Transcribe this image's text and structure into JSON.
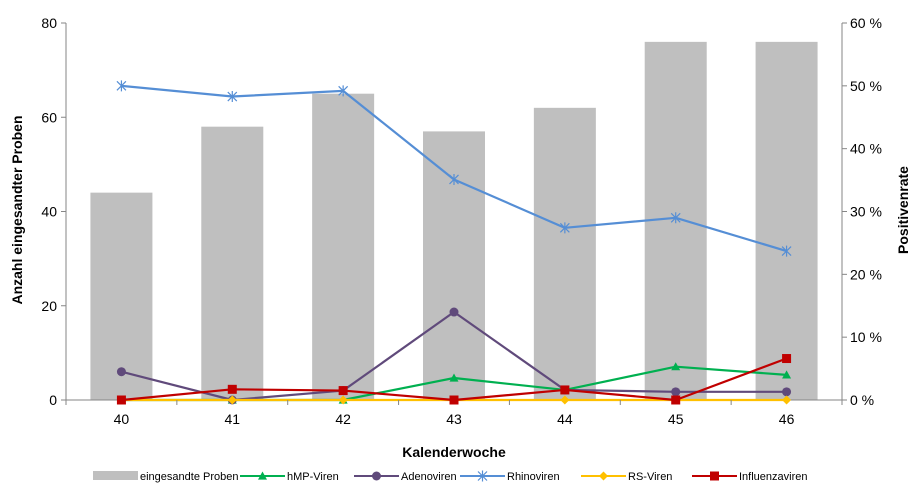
{
  "chart_data": {
    "type": "bar",
    "title": "",
    "xlabel": "Kalenderwoche",
    "ylabel": "Anzahl eingesandter Proben",
    "y2label": "Positivenrate",
    "ylim": [
      0,
      80
    ],
    "y2lim": [
      0,
      60
    ],
    "yticks": [
      "0",
      "20",
      "40",
      "60",
      "80"
    ],
    "y2ticks": [
      "0 %",
      "10 %",
      "20 %",
      "30 %",
      "40 %",
      "50 %",
      "60 %"
    ],
    "categories": [
      "40",
      "41",
      "42",
      "43",
      "44",
      "45",
      "46"
    ],
    "grid": false,
    "legend_position": "bottom",
    "bars": {
      "name": "eingesandte Proben",
      "color": "#bfbfbf",
      "values": [
        44,
        58,
        65,
        57,
        62,
        76,
        76
      ]
    },
    "series": [
      {
        "name": "hMP-Viren",
        "axis": "right",
        "color": "#00b050",
        "marker": "triangle",
        "values": [
          0,
          0,
          0,
          3.5,
          1.6,
          5.3,
          4.0
        ]
      },
      {
        "name": "Adenoviren",
        "axis": "right",
        "color": "#604a7b",
        "marker": "circle",
        "values": [
          4.5,
          0,
          1.5,
          14.0,
          1.6,
          1.3,
          1.3
        ]
      },
      {
        "name": "Rhinoviren",
        "axis": "right",
        "color": "#558ed5",
        "marker": "star",
        "values": [
          50.0,
          48.3,
          49.2,
          35.1,
          27.4,
          29.0,
          23.7
        ]
      },
      {
        "name": "RS-Viren",
        "axis": "right",
        "color": "#ffc000",
        "marker": "diamond",
        "values": [
          0,
          0,
          0,
          0,
          0,
          0,
          0
        ]
      },
      {
        "name": "Influenzaviren",
        "axis": "right",
        "color": "#c00000",
        "marker": "square",
        "values": [
          0,
          1.7,
          1.5,
          0,
          1.6,
          0,
          6.6
        ]
      }
    ]
  }
}
